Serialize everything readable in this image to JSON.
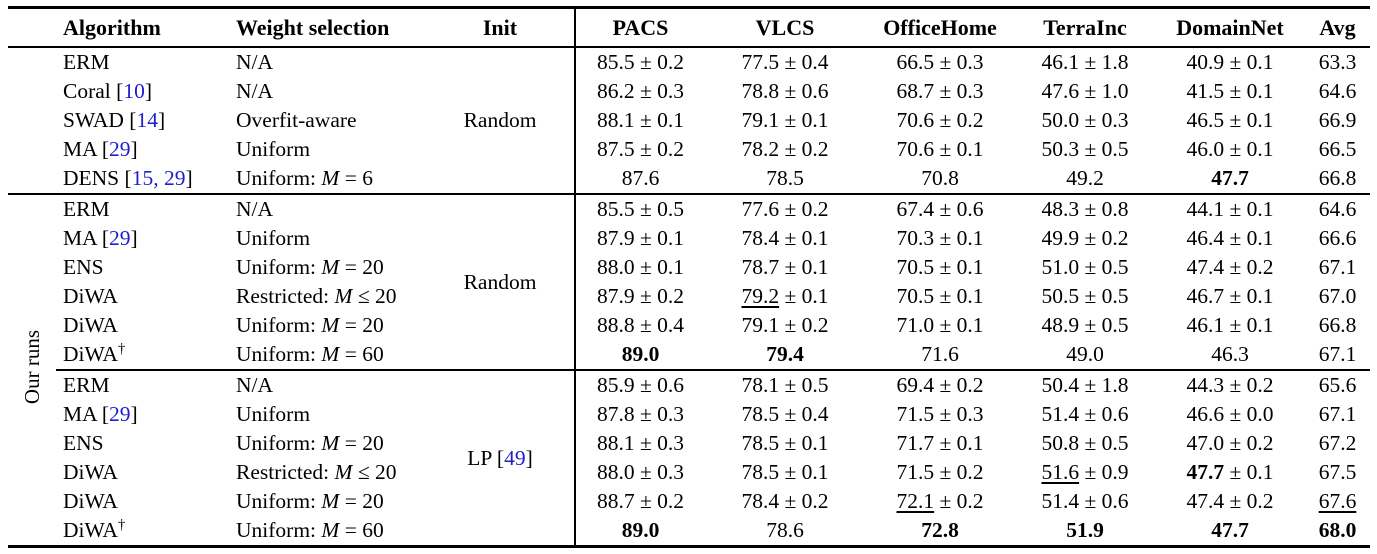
{
  "table": {
    "colors": {
      "citation": "#1d1dd1",
      "text": "#000000",
      "rule": "#000000"
    },
    "cite_brackets": [
      "[",
      "]"
    ],
    "row_group_label": "Our runs",
    "headers": [
      "Algorithm",
      "Weight selection",
      "Init",
      "PACS",
      "VLCS",
      "OfficeHome",
      "TerraInc",
      "DomainNet",
      "Avg"
    ],
    "groups": [
      {
        "gutter": null,
        "init": {
          "label": "Random"
        },
        "rows": [
          {
            "algorithm": {
              "name": "ERM"
            },
            "weight": {
              "pre": "N/A"
            },
            "cells": [
              {
                "v": "85.5",
                "pm": "± 0.2",
                "style": "n"
              },
              {
                "v": "77.5",
                "pm": "± 0.4",
                "style": "n"
              },
              {
                "v": "66.5",
                "pm": "± 0.3",
                "style": "n"
              },
              {
                "v": "46.1",
                "pm": "± 1.8",
                "style": "n"
              },
              {
                "v": "40.9",
                "pm": "± 0.1",
                "style": "n"
              },
              {
                "v": "63.3",
                "pm": null,
                "style": "n"
              }
            ]
          },
          {
            "algorithm": {
              "name": "Coral",
              "cite": "10"
            },
            "weight": {
              "pre": "N/A"
            },
            "cells": [
              {
                "v": "86.2",
                "pm": "± 0.3",
                "style": "n"
              },
              {
                "v": "78.8",
                "pm": "± 0.6",
                "style": "n"
              },
              {
                "v": "68.7",
                "pm": "± 0.3",
                "style": "n"
              },
              {
                "v": "47.6",
                "pm": "± 1.0",
                "style": "n"
              },
              {
                "v": "41.5",
                "pm": "± 0.1",
                "style": "n"
              },
              {
                "v": "64.6",
                "pm": null,
                "style": "n"
              }
            ]
          },
          {
            "algorithm": {
              "name": "SWAD",
              "cite": "14"
            },
            "weight": {
              "pre": "Overfit-aware"
            },
            "cells": [
              {
                "v": "88.1",
                "pm": "± 0.1",
                "style": "n"
              },
              {
                "v": "79.1",
                "pm": "± 0.1",
                "style": "n"
              },
              {
                "v": "70.6",
                "pm": "± 0.2",
                "style": "n"
              },
              {
                "v": "50.0",
                "pm": "± 0.3",
                "style": "n"
              },
              {
                "v": "46.5",
                "pm": "± 0.1",
                "style": "n"
              },
              {
                "v": "66.9",
                "pm": null,
                "style": "n"
              }
            ]
          },
          {
            "algorithm": {
              "name": "MA",
              "cite": "29"
            },
            "weight": {
              "pre": "Uniform"
            },
            "cells": [
              {
                "v": "87.5",
                "pm": "± 0.2",
                "style": "n"
              },
              {
                "v": "78.2",
                "pm": "± 0.2",
                "style": "n"
              },
              {
                "v": "70.6",
                "pm": "± 0.1",
                "style": "n"
              },
              {
                "v": "50.3",
                "pm": "± 0.5",
                "style": "n"
              },
              {
                "v": "46.0",
                "pm": "± 0.1",
                "style": "n"
              },
              {
                "v": "66.5",
                "pm": null,
                "style": "n"
              }
            ]
          },
          {
            "algorithm": {
              "name": "DENS",
              "cite": "15, 29"
            },
            "weight": {
              "pre": "Uniform:",
              "var": "M",
              "rest": "= 6"
            },
            "cells": [
              {
                "v": "87.6",
                "pm": null,
                "style": "n"
              },
              {
                "v": "78.5",
                "pm": null,
                "style": "n"
              },
              {
                "v": "70.8",
                "pm": null,
                "style": "n"
              },
              {
                "v": "49.2",
                "pm": null,
                "style": "n"
              },
              {
                "v": "47.7",
                "pm": null,
                "style": "b"
              },
              {
                "v": "66.8",
                "pm": null,
                "style": "n"
              }
            ]
          }
        ]
      },
      {
        "gutter": "Our runs",
        "init": {
          "label": "Random"
        },
        "rows": [
          {
            "algorithm": {
              "name": "ERM"
            },
            "weight": {
              "pre": "N/A"
            },
            "cells": [
              {
                "v": "85.5",
                "pm": "± 0.5",
                "style": "n"
              },
              {
                "v": "77.6",
                "pm": "± 0.2",
                "style": "n"
              },
              {
                "v": "67.4",
                "pm": "± 0.6",
                "style": "n"
              },
              {
                "v": "48.3",
                "pm": "± 0.8",
                "style": "n"
              },
              {
                "v": "44.1",
                "pm": "± 0.1",
                "style": "n"
              },
              {
                "v": "64.6",
                "pm": null,
                "style": "n"
              }
            ]
          },
          {
            "algorithm": {
              "name": "MA",
              "cite": "29"
            },
            "weight": {
              "pre": "Uniform"
            },
            "cells": [
              {
                "v": "87.9",
                "pm": "± 0.1",
                "style": "n"
              },
              {
                "v": "78.4",
                "pm": "± 0.1",
                "style": "n"
              },
              {
                "v": "70.3",
                "pm": "± 0.1",
                "style": "n"
              },
              {
                "v": "49.9",
                "pm": "± 0.2",
                "style": "n"
              },
              {
                "v": "46.4",
                "pm": "± 0.1",
                "style": "n"
              },
              {
                "v": "66.6",
                "pm": null,
                "style": "n"
              }
            ]
          },
          {
            "algorithm": {
              "name": "ENS"
            },
            "weight": {
              "pre": "Uniform:",
              "var": "M",
              "rest": "= 20"
            },
            "cells": [
              {
                "v": "88.0",
                "pm": "± 0.1",
                "style": "n"
              },
              {
                "v": "78.7",
                "pm": "± 0.1",
                "style": "n"
              },
              {
                "v": "70.5",
                "pm": "± 0.1",
                "style": "n"
              },
              {
                "v": "51.0",
                "pm": "± 0.5",
                "style": "n"
              },
              {
                "v": "47.4",
                "pm": "± 0.2",
                "style": "n"
              },
              {
                "v": "67.1",
                "pm": null,
                "style": "n"
              }
            ]
          },
          {
            "algorithm": {
              "name": "DiWA"
            },
            "weight": {
              "pre": "Restricted:",
              "var": "M",
              "rest": "≤ 20"
            },
            "cells": [
              {
                "v": "87.9",
                "pm": "± 0.2",
                "style": "n"
              },
              {
                "v": "79.2",
                "pm": "± 0.1",
                "style": "u"
              },
              {
                "v": "70.5",
                "pm": "± 0.1",
                "style": "n"
              },
              {
                "v": "50.5",
                "pm": "± 0.5",
                "style": "n"
              },
              {
                "v": "46.7",
                "pm": "± 0.1",
                "style": "n"
              },
              {
                "v": "67.0",
                "pm": null,
                "style": "n"
              }
            ]
          },
          {
            "algorithm": {
              "name": "DiWA"
            },
            "weight": {
              "pre": "Uniform:",
              "var": "M",
              "rest": "= 20"
            },
            "cells": [
              {
                "v": "88.8",
                "pm": "± 0.4",
                "style": "n"
              },
              {
                "v": "79.1",
                "pm": "± 0.2",
                "style": "n"
              },
              {
                "v": "71.0",
                "pm": "± 0.1",
                "style": "n"
              },
              {
                "v": "48.9",
                "pm": "± 0.5",
                "style": "n"
              },
              {
                "v": "46.1",
                "pm": "± 0.1",
                "style": "n"
              },
              {
                "v": "66.8",
                "pm": null,
                "style": "n"
              }
            ]
          },
          {
            "algorithm": {
              "name": "DiWA",
              "sup": "†"
            },
            "weight": {
              "pre": "Uniform:",
              "var": "M",
              "rest": "= 60"
            },
            "cells": [
              {
                "v": "89.0",
                "pm": null,
                "style": "b"
              },
              {
                "v": "79.4",
                "pm": null,
                "style": "b"
              },
              {
                "v": "71.6",
                "pm": null,
                "style": "n"
              },
              {
                "v": "49.0",
                "pm": null,
                "style": "n"
              },
              {
                "v": "46.3",
                "pm": null,
                "style": "n"
              },
              {
                "v": "67.1",
                "pm": null,
                "style": "n"
              }
            ]
          }
        ]
      },
      {
        "gutter": null,
        "init": {
          "label": "LP",
          "cite": "49"
        },
        "rows": [
          {
            "algorithm": {
              "name": "ERM"
            },
            "weight": {
              "pre": "N/A"
            },
            "cells": [
              {
                "v": "85.9",
                "pm": "± 0.6",
                "style": "n"
              },
              {
                "v": "78.1",
                "pm": "± 0.5",
                "style": "n"
              },
              {
                "v": "69.4",
                "pm": "± 0.2",
                "style": "n"
              },
              {
                "v": "50.4",
                "pm": "± 1.8",
                "style": "n"
              },
              {
                "v": "44.3",
                "pm": "± 0.2",
                "style": "n"
              },
              {
                "v": "65.6",
                "pm": null,
                "style": "n"
              }
            ]
          },
          {
            "algorithm": {
              "name": "MA",
              "cite": "29"
            },
            "weight": {
              "pre": "Uniform"
            },
            "cells": [
              {
                "v": "87.8",
                "pm": "± 0.3",
                "style": "n"
              },
              {
                "v": "78.5",
                "pm": "± 0.4",
                "style": "n"
              },
              {
                "v": "71.5",
                "pm": "± 0.3",
                "style": "n"
              },
              {
                "v": "51.4",
                "pm": "± 0.6",
                "style": "n"
              },
              {
                "v": "46.6",
                "pm": "± 0.0",
                "style": "n"
              },
              {
                "v": "67.1",
                "pm": null,
                "style": "n"
              }
            ]
          },
          {
            "algorithm": {
              "name": "ENS"
            },
            "weight": {
              "pre": "Uniform:",
              "var": "M",
              "rest": "= 20"
            },
            "cells": [
              {
                "v": "88.1",
                "pm": "± 0.3",
                "style": "n"
              },
              {
                "v": "78.5",
                "pm": "± 0.1",
                "style": "n"
              },
              {
                "v": "71.7",
                "pm": "± 0.1",
                "style": "n"
              },
              {
                "v": "50.8",
                "pm": "± 0.5",
                "style": "n"
              },
              {
                "v": "47.0",
                "pm": "± 0.2",
                "style": "n"
              },
              {
                "v": "67.2",
                "pm": null,
                "style": "n"
              }
            ]
          },
          {
            "algorithm": {
              "name": "DiWA"
            },
            "weight": {
              "pre": "Restricted:",
              "var": "M",
              "rest": "≤ 20"
            },
            "cells": [
              {
                "v": "88.0",
                "pm": "± 0.3",
                "style": "n"
              },
              {
                "v": "78.5",
                "pm": "± 0.1",
                "style": "n"
              },
              {
                "v": "71.5",
                "pm": "± 0.2",
                "style": "n"
              },
              {
                "v": "51.6",
                "pm": "± 0.9",
                "style": "u"
              },
              {
                "v": "47.7",
                "pm": "± 0.1",
                "style": "b"
              },
              {
                "v": "67.5",
                "pm": null,
                "style": "n"
              }
            ]
          },
          {
            "algorithm": {
              "name": "DiWA"
            },
            "weight": {
              "pre": "Uniform:",
              "var": "M",
              "rest": "= 20"
            },
            "cells": [
              {
                "v": "88.7",
                "pm": "± 0.2",
                "style": "n"
              },
              {
                "v": "78.4",
                "pm": "± 0.2",
                "style": "n"
              },
              {
                "v": "72.1",
                "pm": "± 0.2",
                "style": "u"
              },
              {
                "v": "51.4",
                "pm": "± 0.6",
                "style": "n"
              },
              {
                "v": "47.4",
                "pm": "± 0.2",
                "style": "n"
              },
              {
                "v": "67.6",
                "pm": null,
                "style": "u"
              }
            ]
          },
          {
            "algorithm": {
              "name": "DiWA",
              "sup": "†"
            },
            "weight": {
              "pre": "Uniform:",
              "var": "M",
              "rest": "= 60"
            },
            "cells": [
              {
                "v": "89.0",
                "pm": null,
                "style": "b"
              },
              {
                "v": "78.6",
                "pm": null,
                "style": "n"
              },
              {
                "v": "72.8",
                "pm": null,
                "style": "b"
              },
              {
                "v": "51.9",
                "pm": null,
                "style": "b"
              },
              {
                "v": "47.7",
                "pm": null,
                "style": "b"
              },
              {
                "v": "68.0",
                "pm": null,
                "style": "b"
              }
            ]
          }
        ]
      }
    ]
  }
}
